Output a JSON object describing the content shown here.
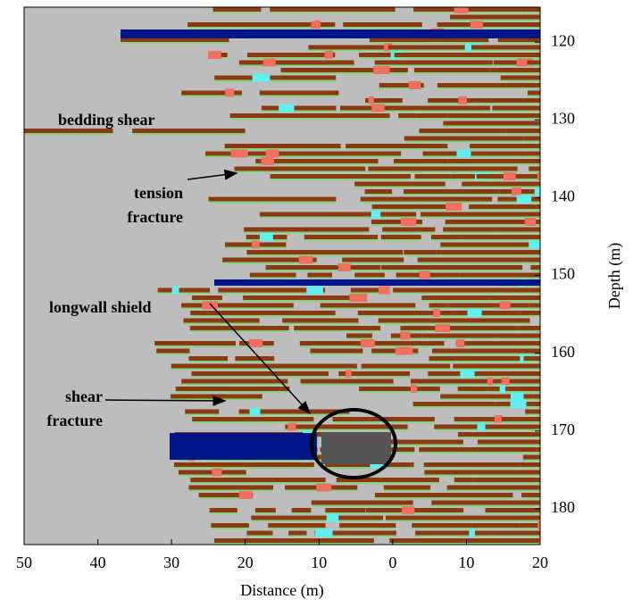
{
  "chart_data": {
    "type": "image",
    "xlabel": "Distance (m)",
    "ylabel": "Depth (m)",
    "xlim": [
      -50,
      20
    ],
    "xticks": [
      {
        "value": -50,
        "label": "50"
      },
      {
        "value": -40,
        "label": "40"
      },
      {
        "value": -30,
        "label": "30"
      },
      {
        "value": -20,
        "label": "20"
      },
      {
        "value": -10,
        "label": "10"
      },
      0,
      10,
      20
    ],
    "ylim": [
      184.6,
      115.5
    ],
    "yticks": [
      120,
      130,
      140,
      150,
      160,
      170,
      180
    ],
    "annotations": [
      {
        "lines": [
          "bedding shear"
        ]
      },
      {
        "lines": [
          "tension",
          "fracture"
        ]
      },
      {
        "lines": [
          "longwall shield"
        ]
      },
      {
        "lines": [
          "shear",
          "fracture"
        ]
      }
    ]
  }
}
